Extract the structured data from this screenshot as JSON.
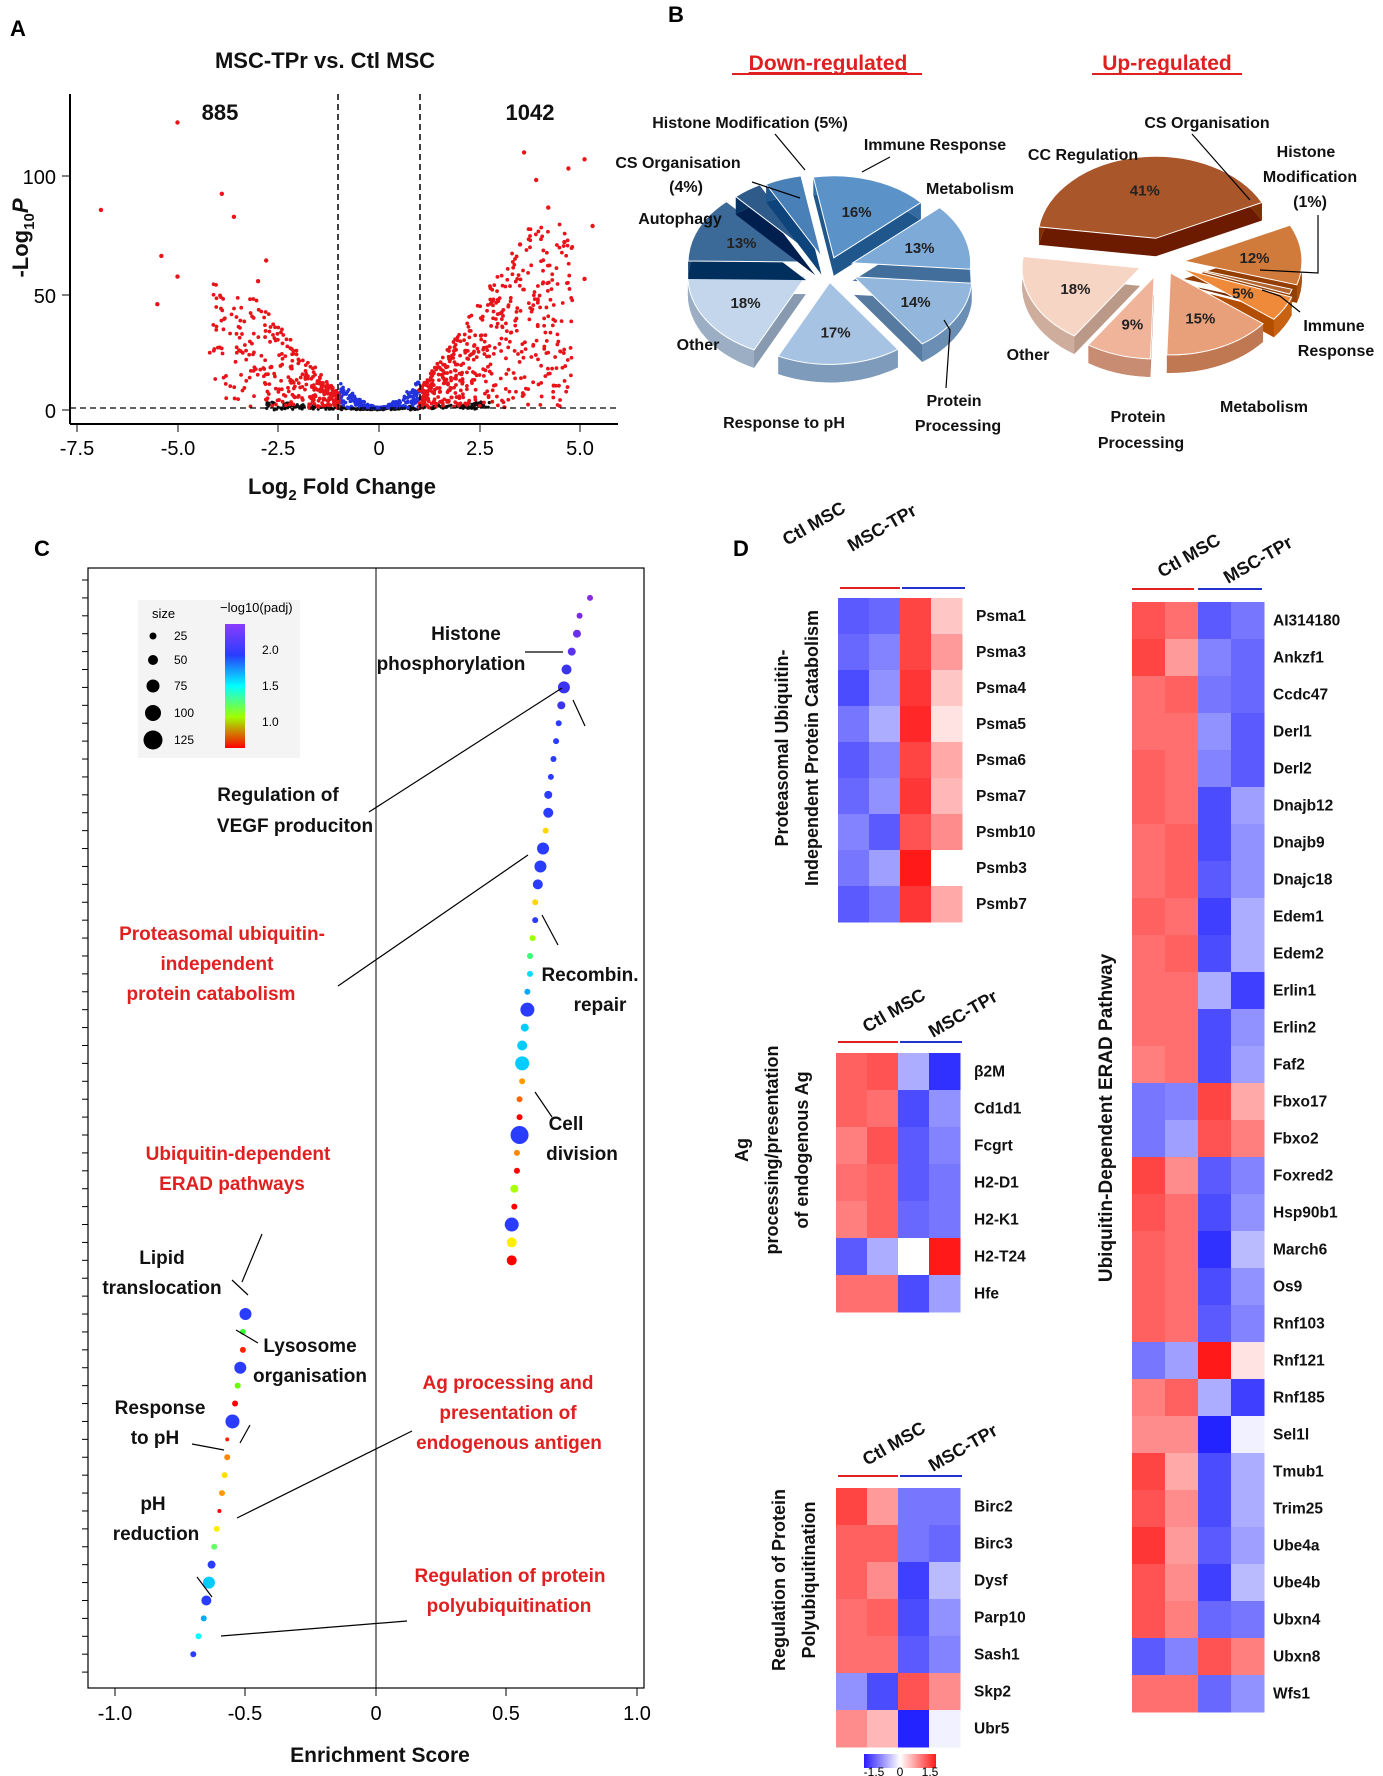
{
  "panels": {
    "a": "A",
    "b": "B",
    "c": "C",
    "d": "D"
  },
  "volcano": {
    "title": "MSC-TPr vs. Ctl MSC",
    "down_count": "885",
    "up_count": "1042",
    "xlabel": "Log",
    "xlabel_sub": "2",
    "xlabel_rest": " Fold Change",
    "ylabel_pre": "-Log",
    "ylabel_sub": "10",
    "ylabel_post": "P",
    "x_ticks": [
      "-7.5",
      "-5.0",
      "-2.5",
      "0",
      "2.5",
      "5.0"
    ],
    "y_ticks": [
      "0",
      "50",
      "100"
    ],
    "colors": {
      "sig": "#e8141a",
      "ns_mid": "#2233dd",
      "ns": "#111111"
    }
  },
  "pies": {
    "down": {
      "title": "Down-regulated",
      "slices": [
        {
          "pct": "16%",
          "label": "Immune Response",
          "color": "#5b93c9"
        },
        {
          "pct": "13%",
          "label": "Metabolism",
          "color": "#7daad6"
        },
        {
          "pct": "14%",
          "label": "Protein Processing",
          "color": "#92b6dc"
        },
        {
          "pct": "17%",
          "label": "Response to pH",
          "color": "#a7c3e3"
        },
        {
          "pct": "18%",
          "label": "Other",
          "color": "#c3d6ec"
        },
        {
          "pct": "13%",
          "label": "Autophagy",
          "color": "#3b6a99"
        },
        {
          "pct": "",
          "label": "CS Organisation (4%)",
          "color": "#2f5b8a"
        },
        {
          "pct": "",
          "label": "Histone Modification (5%)",
          "color": "#4a80b8"
        }
      ],
      "labels": {
        "histone": "Histone Modification (5%)",
        "cs": "CS Organisation",
        "cs_pct": "(4%)",
        "autophagy": "Autophagy",
        "immune": "Immune Response",
        "metabolism": "Metabolism",
        "other": "Other",
        "ph": "Response to pH",
        "protein": "Protein",
        "processing": "Processing"
      }
    },
    "up": {
      "title": "Up-regulated",
      "slices": [
        {
          "pct": "41%",
          "label": "CC Regulation",
          "color": "#a8562a"
        },
        {
          "pct": "12%",
          "label": "CS Organisation",
          "color": "#d07a3b"
        },
        {
          "pct": "",
          "label": "Histone Modification (1%)",
          "color": "#b36530"
        },
        {
          "pct": "5%",
          "label": "Immune Response",
          "color": "#ef8a3a"
        },
        {
          "pct": "15%",
          "label": "Metabolism",
          "color": "#e8a07a"
        },
        {
          "pct": "9%",
          "label": "Protein Processing",
          "color": "#f0b49a"
        },
        {
          "pct": "18%",
          "label": "Other",
          "color": "#f7d5c4"
        }
      ],
      "labels": {
        "cs": "CS Organisation",
        "cc": "CC Regulation",
        "histone": "Histone",
        "modification": "Modification",
        "histone_pct": "(1%)",
        "immune": "Immune",
        "response": "Response",
        "metabolism": "Metabolism",
        "protein": "Protein",
        "processing": "Processing",
        "other": "Other"
      }
    }
  },
  "enrichment": {
    "xlabel": "Enrichment Score",
    "x_ticks": [
      "-1.0",
      "-0.5",
      "0",
      "0.5",
      "1.0"
    ],
    "legend": {
      "size_title": "size",
      "sizes": [
        "25",
        "50",
        "75",
        "100",
        "125"
      ],
      "color_title": "−log10(padj)",
      "color_ticks": [
        "2.0",
        "1.5",
        "1.0"
      ]
    },
    "annotations": {
      "histone1": "Histone",
      "histone2": "phosphorylation",
      "vegf1": "Regulation of",
      "vegf2": "VEGF produciton",
      "prot1": "Proteasomal ubiquitin-",
      "prot2": "independent",
      "prot3": "protein catabolism",
      "recomb1": "Recombin.",
      "recomb2": "repair",
      "cell1": "Cell",
      "cell2": "division",
      "ubi1": "Ubiquitin-dependent",
      "ubi2": "ERAD pathways",
      "lipid1": "Lipid",
      "lipid2": "translocation",
      "lyso1": "Lysosome",
      "lyso2": "organisation",
      "ag1": "Ag processing and",
      "ag2": "presentation of",
      "ag3": "endogenous antigen",
      "resp1": "Response",
      "resp2": "to pH",
      "phr1": "pH",
      "phr2": "reduction",
      "poly1": "Regulation of protein",
      "poly2": "polyubiquitination"
    }
  },
  "heatmaps": {
    "col_labels": [
      "Ctl MSC",
      "MSC-TPr"
    ],
    "scale_ticks": [
      "-1.5",
      "0",
      "1.5"
    ],
    "proteasomal": {
      "title1": "Proteasomal Ubiquitin-",
      "title2": "Independent Protein Catabolism",
      "genes": [
        "Psma1",
        "Psma3",
        "Psma4",
        "Psma5",
        "Psma6",
        "Psma7",
        "Psmb10",
        "Psmb3",
        "Psmb7"
      ],
      "values": [
        [
          -1.2,
          -1.1,
          1.3,
          0.4
        ],
        [
          -1.1,
          -0.9,
          1.3,
          0.7
        ],
        [
          -1.3,
          -0.8,
          1.4,
          0.4
        ],
        [
          -1.0,
          -0.6,
          1.5,
          0.2
        ],
        [
          -1.2,
          -0.9,
          1.3,
          0.6
        ],
        [
          -1.1,
          -0.8,
          1.4,
          0.5
        ],
        [
          -0.9,
          -1.2,
          1.2,
          0.8
        ],
        [
          -1.0,
          -0.7,
          1.6,
          0.0
        ],
        [
          -1.2,
          -1.0,
          1.4,
          0.6
        ]
      ]
    },
    "ag": {
      "title1": "Ag",
      "title2": "processing/presentation",
      "title3": "of endogenous Ag",
      "genes": [
        "β2M",
        "Cd1d1",
        "Fcgrt",
        "H2-D1",
        "H2-K1",
        "H2-T24",
        "Hfe"
      ],
      "values": [
        [
          1.1,
          1.2,
          -0.6,
          -1.5
        ],
        [
          1.1,
          1.0,
          -1.3,
          -0.8
        ],
        [
          0.9,
          1.2,
          -1.2,
          -0.9
        ],
        [
          1.0,
          1.1,
          -1.2,
          -1.0
        ],
        [
          0.9,
          1.1,
          -1.1,
          -1.0
        ],
        [
          -1.2,
          -0.6,
          0.0,
          1.6
        ],
        [
          1.0,
          1.0,
          -1.3,
          -0.7
        ]
      ]
    },
    "polyubi": {
      "title1": "Regulation of Protein",
      "title2": "Polyubiquitination",
      "genes": [
        "Birc2",
        "Birc3",
        "Dysf",
        "Parp10",
        "Sash1",
        "Skp2",
        "Ubr5"
      ],
      "values": [
        [
          1.3,
          0.7,
          -1.0,
          -1.0
        ],
        [
          1.1,
          1.1,
          -1.0,
          -1.1
        ],
        [
          1.1,
          0.8,
          -1.4,
          -0.5
        ],
        [
          1.0,
          1.1,
          -1.3,
          -0.8
        ],
        [
          1.0,
          1.0,
          -1.2,
          -0.9
        ],
        [
          -0.8,
          -1.3,
          1.2,
          0.8
        ],
        [
          0.8,
          0.5,
          -1.6,
          -0.1
        ]
      ]
    },
    "erad": {
      "title": "Ubiquitin-Dependent  ERAD Pathway",
      "genes": [
        "AI314180",
        "Ankzf1",
        "Ccdc47",
        "Derl1",
        "Derl2",
        "Dnajb12",
        "Dnajb9",
        "Dnajc18",
        "Edem1",
        "Edem2",
        "Erlin1",
        "Erlin2",
        "Faf2",
        "Fbxo17",
        "Fbxo2",
        "Foxred2",
        "Hsp90b1",
        "March6",
        "Os9",
        "Rnf103",
        "Rnf121",
        "Rnf185",
        "Sel1l",
        "Tmub1",
        "Trim25",
        "Ube4a",
        "Ube4b",
        "Ubxn4",
        "Ubxn8",
        "Wfs1"
      ],
      "values": [
        [
          1.2,
          1.0,
          -1.2,
          -1.0
        ],
        [
          1.3,
          0.7,
          -0.9,
          -1.1
        ],
        [
          1.0,
          1.1,
          -1.0,
          -1.1
        ],
        [
          1.0,
          1.0,
          -0.8,
          -1.2
        ],
        [
          1.1,
          1.0,
          -0.9,
          -1.2
        ],
        [
          1.1,
          1.0,
          -1.3,
          -0.7
        ],
        [
          1.0,
          1.1,
          -1.3,
          -0.8
        ],
        [
          1.0,
          1.1,
          -1.2,
          -0.8
        ],
        [
          1.1,
          1.0,
          -1.4,
          -0.6
        ],
        [
          1.0,
          1.1,
          -1.3,
          -0.6
        ],
        [
          1.0,
          1.0,
          -0.6,
          -1.4
        ],
        [
          1.0,
          1.0,
          -1.3,
          -0.8
        ],
        [
          0.9,
          1.0,
          -1.3,
          -0.7
        ],
        [
          -1.0,
          -0.9,
          1.3,
          0.6
        ],
        [
          -1.0,
          -0.7,
          1.2,
          0.9
        ],
        [
          1.3,
          0.8,
          -1.2,
          -0.9
        ],
        [
          1.2,
          1.0,
          -1.3,
          -0.8
        ],
        [
          1.1,
          1.0,
          -1.5,
          -0.5
        ],
        [
          1.1,
          1.0,
          -1.3,
          -0.8
        ],
        [
          1.1,
          1.0,
          -1.2,
          -0.9
        ],
        [
          -1.0,
          -0.7,
          1.6,
          0.2
        ],
        [
          0.9,
          1.1,
          -0.6,
          -1.4
        ],
        [
          0.8,
          0.8,
          -1.6,
          -0.1
        ],
        [
          1.3,
          0.6,
          -1.3,
          -0.6
        ],
        [
          1.2,
          0.8,
          -1.3,
          -0.6
        ],
        [
          1.4,
          0.7,
          -1.2,
          -0.7
        ],
        [
          1.2,
          0.8,
          -1.4,
          -0.5
        ],
        [
          1.2,
          0.9,
          -1.1,
          -1.0
        ],
        [
          -1.2,
          -0.9,
          1.2,
          0.9
        ],
        [
          1.0,
          1.0,
          -1.1,
          -0.8
        ]
      ]
    }
  }
}
